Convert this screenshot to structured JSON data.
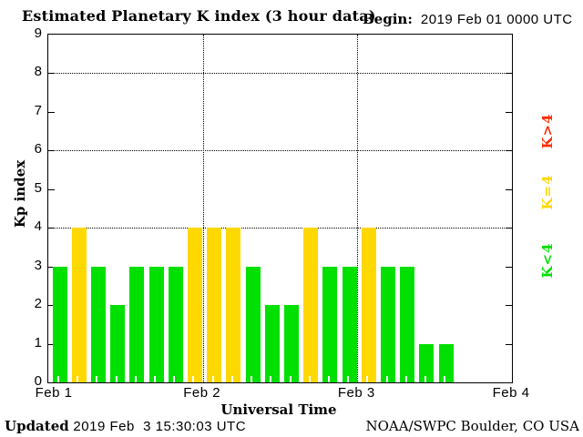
{
  "header": {
    "title": "Estimated Planetary K index (3 hour data)",
    "begin_label": "Begin:",
    "begin_value": "2019 Feb 01 0000 UTC"
  },
  "footer": {
    "updated_label": "Updated",
    "updated_value": " 2019 Feb  3 15:30:03 UTC",
    "source": "NOAA/SWPC Boulder, CO USA"
  },
  "chart_data": {
    "type": "bar",
    "title": "Estimated Planetary K index (3 hour data)",
    "xlabel": "Universal Time",
    "ylabel": "Kp index",
    "ylim": [
      0,
      9
    ],
    "yticks": [
      0,
      1,
      2,
      3,
      4,
      5,
      6,
      7,
      8,
      9
    ],
    "gridlines_y": [
      4,
      6,
      8
    ],
    "grid": "dotted",
    "days": 3,
    "slots_per_day": 8,
    "hours_per_slot": 3,
    "x_tick_labels": [
      "Feb 1",
      "Feb 2",
      "Feb 3",
      "Feb 4"
    ],
    "values": [
      3,
      4,
      3,
      2,
      3,
      3,
      3,
      4,
      4,
      4,
      3,
      2,
      2,
      4,
      3,
      3,
      4,
      3,
      3,
      1,
      1
    ],
    "bar_colors": {
      "below4": "#00e000",
      "equal4": "#ffd800",
      "above4": "#ff2a00"
    },
    "legend": [
      {
        "label": "K>4",
        "color": "#ff2a00"
      },
      {
        "label": "K=4",
        "color": "#ffd800"
      },
      {
        "label": "K<4",
        "color": "#00e000"
      }
    ],
    "legend_position": "right"
  }
}
